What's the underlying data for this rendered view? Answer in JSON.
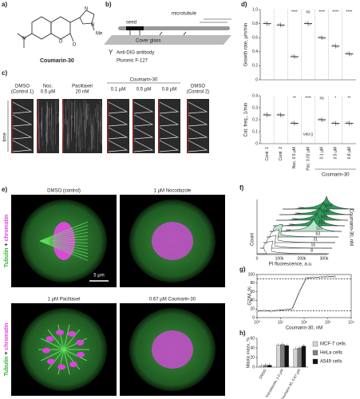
{
  "panel_labels": [
    "a)",
    "b)",
    "c)",
    "d)",
    "e)",
    "f)",
    "g)",
    "h)"
  ],
  "a": {
    "name": "Coumarin-30",
    "atoms": [
      "N",
      "O",
      "O",
      "N",
      "N",
      "Me"
    ]
  },
  "b": {
    "labels": [
      "microtubule",
      "seed",
      "Cover glass"
    ],
    "legend": [
      "Anti-DIG antibody",
      "Pluronic F-127"
    ]
  },
  "c": {
    "columns": [
      [
        "DMSO",
        "(Control 1)"
      ],
      [
        "Noc.",
        "0.5 µM"
      ],
      [
        "Paclitaxel",
        "20 nM"
      ],
      [
        "0.1 µM"
      ],
      [
        "0.5 µM"
      ],
      [
        "0.8 µM"
      ],
      [
        "DMSO",
        "(Control 2)"
      ]
    ],
    "group_label": "Coumarin-30",
    "time_label": "time"
  },
  "d": {
    "categories": [
      "Contr. 1",
      "Contr. 2",
      "Noc. 0.5 µM",
      "Pac. 0.02 µM",
      "0.1 µM",
      "0.5 µM",
      "0.8 µM"
    ],
    "group_label": "Coumarin-30",
    "growth": {
      "ylabel": "Growth rate, µm/min",
      "ylim": [
        0,
        1.0
      ],
      "yticks": [
        0,
        0.2,
        0.4,
        0.6,
        0.8,
        {
          "value": 1.0,
          "label": "1.0"
        }
      ],
      "values": [
        0.8,
        0.78,
        0.33,
        0.8,
        0.6,
        0.48,
        0.37
      ],
      "significance": [
        null,
        null,
        "****",
        "ns",
        "****",
        "****",
        "****"
      ]
    },
    "catastrophe": {
      "ylabel": "Cat. freq., 1/min",
      "ylim": [
        0,
        0.4
      ],
      "yticks": [
        0,
        0.1,
        0.2,
        0.3,
        0.4
      ],
      "values": [
        0.24,
        0.24,
        0.17,
        null,
        0.2,
        0.17,
        0.17
      ],
      "significance": [
        null,
        null,
        "**",
        "****",
        "ns",
        "*",
        "**"
      ],
      "annotation": "0 min"
    }
  },
  "e": {
    "images": [
      {
        "title": "DMSO (control)"
      },
      {
        "title": "1 µM Nocodazole"
      },
      {
        "title": "1 µM Paclitaxel"
      },
      {
        "title": "0.67 µM Coumarin-30"
      }
    ],
    "stain": {
      "tubulin": "Tubulin",
      "plus": "+",
      "chromatin": "chromatin"
    },
    "scale_bar": "5 µm"
  },
  "f": {
    "concentrations": [
      "2000",
      "1000",
      "500",
      "250",
      "125",
      "63",
      "31",
      "16",
      "8"
    ],
    "xticks": [
      "0",
      "100k",
      "200k",
      "300k"
    ],
    "xlabel": "PI fluorescence, a.u.",
    "ylabel": "Count",
    "legend_title": "Coumarin-30, nM"
  },
  "g": {
    "xlabel": "Coumarin-30, nM",
    "ylabel": "G2/M, %",
    "log_x": true,
    "xlim": [
      1,
      10000
    ],
    "xticks": [
      {
        "value": 1,
        "label": "10⁰"
      },
      {
        "value": 10,
        "label": "10¹"
      },
      {
        "value": 100,
        "label": "10²"
      },
      {
        "value": 1000,
        "label": "10³"
      },
      {
        "value": 10000,
        "label": "10⁴"
      }
    ],
    "ylim": [
      0,
      100
    ],
    "yticks": [
      0,
      20,
      40,
      60,
      80,
      100
    ],
    "x": [
      1,
      2,
      4,
      8,
      16,
      31,
      63,
      125,
      250,
      500,
      1000,
      2000
    ],
    "y": [
      15,
      16,
      15,
      17,
      18,
      20,
      60,
      92,
      93,
      94,
      95,
      95
    ],
    "baselines": [
      16,
      90
    ]
  },
  "h": {
    "ylabel": "Mitotic index, %",
    "categories": [
      "DMSO",
      "Nocodazole, 1.0 µM",
      "Coumarin-30, 0.67 µM"
    ],
    "ylim": [
      0,
      60
    ],
    "yticks": [
      0,
      20,
      40,
      60
    ],
    "series": [
      {
        "name": "MCF-7 cells",
        "color": "#d4d4d4",
        "values": [
          3,
          46,
          38
        ]
      },
      {
        "name": "HeLa cells",
        "color": "#7f7f7f",
        "values": [
          4,
          47,
          40
        ]
      },
      {
        "name": "A549 cells",
        "color": "#111111",
        "values": [
          4,
          45,
          44
        ]
      }
    ]
  }
}
